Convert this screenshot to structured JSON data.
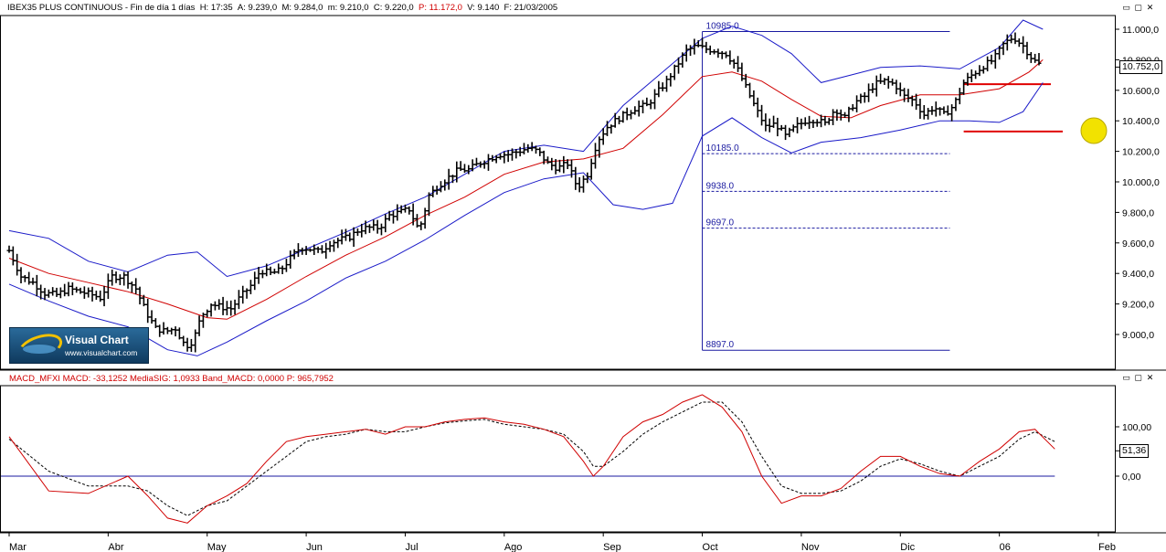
{
  "header": {
    "symbol": "IBEX35 PLUS CONTINUOUS",
    "period": "Fin de día 1 días",
    "time_label": "H:",
    "time": "17:35",
    "open_label": "A:",
    "open": "9.239,0",
    "high_label": "M:",
    "high": "9.284,0",
    "low_label": "m:",
    "low": "9.210,0",
    "close_label": "C:",
    "close": "9.220,0",
    "p_label": "P:",
    "p_value": "11.172,0",
    "v_label": "V:",
    "v_value": "9.140",
    "f_label": "F:",
    "date": "21/03/2005"
  },
  "macd_header": {
    "label": "MACD_MFXI",
    "macd_label": "MACD:",
    "macd_value": "-33,1252",
    "signal_label": "MediaSIG:",
    "signal_value": "1,0933",
    "band_label": "Band_MACD:",
    "band_value": "0,0000",
    "p_label": "P:",
    "p_value": "965,7952"
  },
  "logo": {
    "name": "Visual Chart",
    "url": "www.visualchart.com"
  },
  "price_tag": "10.752,0",
  "macd_tag": "51,36",
  "window_buttons": [
    "▭",
    "▢",
    "✕"
  ],
  "colors": {
    "bars": "#000000",
    "bollinger": "#1a1ac8",
    "moving_average": "#d00000",
    "macd": "#d00000",
    "signal": "#000000",
    "zero_line": "#1a1aa0",
    "fibonacci": "#1a1aa0",
    "support_lines": "#e00000",
    "marker": "#f2e200"
  },
  "chart_data": [
    {
      "type": "ohlc",
      "ylim": [
        8800,
        11150
      ],
      "y_ticks": [
        "11.000,0",
        "10.800,0",
        "10.600,0",
        "10.400,0",
        "10.200,0",
        "10.000,0",
        "9.800,0",
        "9.600,0",
        "9.400,0",
        "9.200,0",
        "9.000,0"
      ],
      "y_tick_values": [
        11000,
        10800,
        10600,
        10400,
        10200,
        10000,
        9800,
        9600,
        9400,
        9200,
        9000
      ],
      "x_ticks": [
        "Mar",
        "Abr",
        "May",
        "Jun",
        "Jul",
        "Ago",
        "Sep",
        "Oct",
        "Nov",
        "Dic",
        "06",
        "Feb"
      ],
      "x_tick_positions": [
        0,
        5,
        10,
        15,
        20,
        25,
        30,
        35,
        40,
        45,
        50,
        55
      ],
      "x_domain": [
        0,
        55
      ],
      "close_path": [
        [
          0,
          9550
        ],
        [
          0.6,
          9380
        ],
        [
          1.2,
          9340
        ],
        [
          1.8,
          9270
        ],
        [
          2.4,
          9260
        ],
        [
          3,
          9300
        ],
        [
          3.6,
          9280
        ],
        [
          4.2,
          9260
        ],
        [
          4.6,
          9240
        ],
        [
          5.2,
          9380
        ],
        [
          5.8,
          9380
        ],
        [
          6.4,
          9300
        ],
        [
          6.9,
          9150
        ],
        [
          7.4,
          9040
        ],
        [
          7.9,
          9020
        ],
        [
          8.4,
          9040
        ],
        [
          8.9,
          8920
        ],
        [
          9.3,
          8960
        ],
        [
          9.7,
          9120
        ],
        [
          10.2,
          9200
        ],
        [
          10.7,
          9180
        ],
        [
          11.2,
          9170
        ],
        [
          11.7,
          9250
        ],
        [
          12.2,
          9320
        ],
        [
          12.7,
          9420
        ],
        [
          13.2,
          9400
        ],
        [
          13.7,
          9420
        ],
        [
          14.2,
          9500
        ],
        [
          14.7,
          9570
        ],
        [
          15.2,
          9560
        ],
        [
          15.7,
          9540
        ],
        [
          16.2,
          9600
        ],
        [
          16.7,
          9620
        ],
        [
          17.2,
          9640
        ],
        [
          17.7,
          9690
        ],
        [
          18.2,
          9700
        ],
        [
          18.7,
          9700
        ],
        [
          19.2,
          9780
        ],
        [
          19.7,
          9800
        ],
        [
          20.2,
          9820
        ],
        [
          20.7,
          9680
        ],
        [
          21.2,
          9910
        ],
        [
          21.7,
          9980
        ],
        [
          22.2,
          10030
        ],
        [
          22.7,
          10080
        ],
        [
          23.2,
          10080
        ],
        [
          23.7,
          10120
        ],
        [
          24.2,
          10150
        ],
        [
          24.7,
          10180
        ],
        [
          25.2,
          10180
        ],
        [
          25.7,
          10200
        ],
        [
          26.2,
          10220
        ],
        [
          26.7,
          10200
        ],
        [
          27.2,
          10120
        ],
        [
          27.7,
          10090
        ],
        [
          28.2,
          10120
        ],
        [
          28.7,
          9960
        ],
        [
          29.2,
          10050
        ],
        [
          29.7,
          10270
        ],
        [
          30.2,
          10360
        ],
        [
          30.7,
          10410
        ],
        [
          31.2,
          10450
        ],
        [
          31.7,
          10490
        ],
        [
          32.2,
          10500
        ],
        [
          32.7,
          10580
        ],
        [
          33.2,
          10660
        ],
        [
          33.7,
          10760
        ],
        [
          34.2,
          10860
        ],
        [
          34.7,
          10890
        ],
        [
          35.2,
          10870
        ],
        [
          35.7,
          10860
        ],
        [
          36.2,
          10840
        ],
        [
          36.7,
          10760
        ],
        [
          37.2,
          10620
        ],
        [
          37.7,
          10480
        ],
        [
          38.2,
          10360
        ],
        [
          38.7,
          10380
        ],
        [
          39.2,
          10300
        ],
        [
          39.7,
          10360
        ],
        [
          40.2,
          10400
        ],
        [
          40.7,
          10410
        ],
        [
          41.2,
          10380
        ],
        [
          41.7,
          10480
        ],
        [
          42.2,
          10420
        ],
        [
          42.7,
          10520
        ],
        [
          43.2,
          10560
        ],
        [
          43.7,
          10640
        ],
        [
          44.2,
          10660
        ],
        [
          44.7,
          10640
        ],
        [
          45.2,
          10560
        ],
        [
          45.7,
          10530
        ],
        [
          46.2,
          10440
        ],
        [
          46.7,
          10490
        ],
        [
          47.2,
          10440
        ],
        [
          47.7,
          10500
        ],
        [
          48.2,
          10650
        ],
        [
          48.7,
          10710
        ],
        [
          49.2,
          10760
        ],
        [
          49.7,
          10800
        ],
        [
          50.2,
          10900
        ],
        [
          50.7,
          10950
        ],
        [
          51.2,
          10890
        ],
        [
          51.7,
          10800
        ],
        [
          52.2,
          10752
        ]
      ],
      "bollinger_upper": [
        [
          0,
          9680
        ],
        [
          2,
          9630
        ],
        [
          4,
          9480
        ],
        [
          6,
          9410
        ],
        [
          8,
          9520
        ],
        [
          9.5,
          9540
        ],
        [
          11,
          9380
        ],
        [
          13,
          9450
        ],
        [
          15,
          9560
        ],
        [
          17,
          9670
        ],
        [
          19,
          9790
        ],
        [
          21,
          9900
        ],
        [
          23,
          10050
        ],
        [
          25,
          10200
        ],
        [
          27,
          10240
        ],
        [
          29,
          10200
        ],
        [
          31,
          10500
        ],
        [
          33,
          10720
        ],
        [
          35,
          10940
        ],
        [
          36.5,
          11020
        ],
        [
          38,
          10960
        ],
        [
          39.5,
          10840
        ],
        [
          41,
          10650
        ],
        [
          42.5,
          10700
        ],
        [
          44,
          10750
        ],
        [
          46,
          10760
        ],
        [
          48,
          10740
        ],
        [
          50,
          10880
        ],
        [
          51.2,
          11060
        ],
        [
          52.2,
          11000
        ]
      ],
      "bollinger_lower": [
        [
          0,
          9330
        ],
        [
          2,
          9220
        ],
        [
          4,
          9120
        ],
        [
          6,
          9050
        ],
        [
          8,
          8900
        ],
        [
          9.5,
          8860
        ],
        [
          11,
          8950
        ],
        [
          13,
          9090
        ],
        [
          15,
          9220
        ],
        [
          17,
          9370
        ],
        [
          19,
          9480
        ],
        [
          21,
          9620
        ],
        [
          23,
          9780
        ],
        [
          25,
          9930
        ],
        [
          27,
          10020
        ],
        [
          29,
          10060
        ],
        [
          30.5,
          9850
        ],
        [
          32,
          9820
        ],
        [
          33.5,
          9860
        ],
        [
          35,
          10300
        ],
        [
          36.5,
          10420
        ],
        [
          38,
          10290
        ],
        [
          39.5,
          10190
        ],
        [
          41,
          10260
        ],
        [
          43,
          10290
        ],
        [
          45,
          10340
        ],
        [
          47,
          10400
        ],
        [
          48.5,
          10400
        ],
        [
          50,
          10390
        ],
        [
          51.2,
          10460
        ],
        [
          52.2,
          10650
        ]
      ],
      "moving_average": [
        [
          0,
          9500
        ],
        [
          2,
          9400
        ],
        [
          4,
          9340
        ],
        [
          6,
          9280
        ],
        [
          8,
          9200
        ],
        [
          10,
          9110
        ],
        [
          11,
          9100
        ],
        [
          13,
          9230
        ],
        [
          15,
          9380
        ],
        [
          17,
          9520
        ],
        [
          19,
          9640
        ],
        [
          21,
          9780
        ],
        [
          23,
          9900
        ],
        [
          25,
          10050
        ],
        [
          27,
          10130
        ],
        [
          29,
          10150
        ],
        [
          31,
          10220
        ],
        [
          33,
          10440
        ],
        [
          35,
          10690
        ],
        [
          36.5,
          10720
        ],
        [
          38,
          10660
        ],
        [
          39.5,
          10540
        ],
        [
          41,
          10430
        ],
        [
          42.5,
          10420
        ],
        [
          44,
          10500
        ],
        [
          46,
          10570
        ],
        [
          48,
          10570
        ],
        [
          50,
          10610
        ],
        [
          51.5,
          10720
        ],
        [
          52.2,
          10800
        ]
      ],
      "fibonacci": {
        "levels": [
          10985.0,
          10185.0,
          9938.0,
          9697.0,
          8897.0
        ],
        "labels": [
          "10985.0",
          "10185.0",
          "9938.0",
          "9697.0",
          "8897.0"
        ]
      },
      "support_lines": [
        10640,
        10330
      ],
      "last_price": 10752.0
    },
    {
      "type": "line",
      "title": "MACD_MFXI",
      "ylim": [
        -100,
        175
      ],
      "y_ticks": [
        "100,00",
        "0,00"
      ],
      "y_tick_values": [
        100,
        0
      ],
      "series": [
        {
          "name": "MACD",
          "style": "solid",
          "values": [
            [
              0,
              80
            ],
            [
              2,
              -30
            ],
            [
              4,
              -35
            ],
            [
              6,
              0
            ],
            [
              7,
              -40
            ],
            [
              8,
              -85
            ],
            [
              9,
              -95
            ],
            [
              10,
              -60
            ],
            [
              11,
              -40
            ],
            [
              12,
              -15
            ],
            [
              13,
              30
            ],
            [
              14,
              70
            ],
            [
              15,
              80
            ],
            [
              16,
              85
            ],
            [
              17,
              90
            ],
            [
              18,
              95
            ],
            [
              19,
              85
            ],
            [
              20,
              100
            ],
            [
              21,
              100
            ],
            [
              22,
              110
            ],
            [
              23,
              115
            ],
            [
              24,
              118
            ],
            [
              25,
              110
            ],
            [
              26,
              105
            ],
            [
              27,
              95
            ],
            [
              28,
              80
            ],
            [
              29,
              30
            ],
            [
              29.5,
              0
            ],
            [
              30,
              20
            ],
            [
              31,
              80
            ],
            [
              32,
              110
            ],
            [
              33,
              125
            ],
            [
              34,
              150
            ],
            [
              35,
              165
            ],
            [
              36,
              140
            ],
            [
              37,
              90
            ],
            [
              38,
              0
            ],
            [
              39,
              -55
            ],
            [
              40,
              -40
            ],
            [
              41,
              -40
            ],
            [
              42,
              -25
            ],
            [
              43,
              10
            ],
            [
              44,
              40
            ],
            [
              45,
              40
            ],
            [
              46,
              20
            ],
            [
              47,
              5
            ],
            [
              48,
              0
            ],
            [
              49,
              30
            ],
            [
              50,
              55
            ],
            [
              51,
              90
            ],
            [
              51.8,
              95
            ],
            [
              52.8,
              55
            ]
          ]
        },
        {
          "name": "MediaSIG",
          "style": "dashed",
          "values": [
            [
              0,
              75
            ],
            [
              2,
              10
            ],
            [
              4,
              -20
            ],
            [
              6,
              -20
            ],
            [
              7,
              -30
            ],
            [
              8,
              -60
            ],
            [
              9,
              -80
            ],
            [
              10,
              -60
            ],
            [
              11,
              -50
            ],
            [
              12,
              -20
            ],
            [
              13,
              10
            ],
            [
              14,
              40
            ],
            [
              15,
              70
            ],
            [
              16,
              80
            ],
            [
              17,
              85
            ],
            [
              18,
              95
            ],
            [
              19,
              90
            ],
            [
              20,
              90
            ],
            [
              21,
              100
            ],
            [
              22,
              108
            ],
            [
              23,
              112
            ],
            [
              24,
              115
            ],
            [
              25,
              105
            ],
            [
              26,
              100
            ],
            [
              27,
              95
            ],
            [
              28,
              85
            ],
            [
              29,
              50
            ],
            [
              29.5,
              20
            ],
            [
              30,
              20
            ],
            [
              31,
              50
            ],
            [
              32,
              85
            ],
            [
              33,
              110
            ],
            [
              34,
              130
            ],
            [
              35,
              150
            ],
            [
              36,
              150
            ],
            [
              37,
              110
            ],
            [
              38,
              40
            ],
            [
              39,
              -20
            ],
            [
              40,
              -35
            ],
            [
              41,
              -35
            ],
            [
              42,
              -30
            ],
            [
              43,
              -10
            ],
            [
              44,
              20
            ],
            [
              45,
              35
            ],
            [
              46,
              25
            ],
            [
              47,
              10
            ],
            [
              48,
              0
            ],
            [
              49,
              20
            ],
            [
              50,
              40
            ],
            [
              51,
              75
            ],
            [
              51.8,
              90
            ],
            [
              52.8,
              70
            ]
          ]
        }
      ],
      "last_value": 51.36
    }
  ]
}
